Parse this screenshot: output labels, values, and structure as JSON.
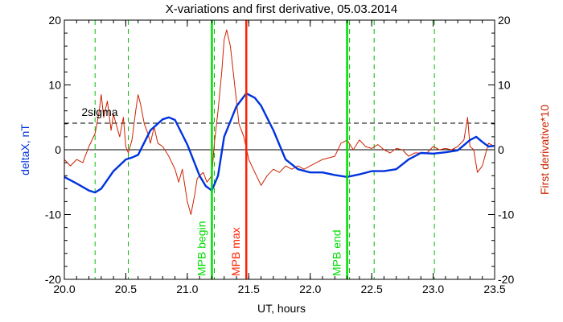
{
  "chart_data": {
    "type": "line",
    "title": "X-variations and first derivative, 05.03.2014",
    "xlabel": "UT, hours",
    "ylabel_left": "deltaX, nT",
    "ylabel_right": "First derivative*10",
    "xlim": [
      20.0,
      23.5
    ],
    "ylim": [
      -20,
      20
    ],
    "x_ticks": [
      "20.0",
      "20.5",
      "21.0",
      "21.5",
      "22.0",
      "22.5",
      "23.0",
      "23.5"
    ],
    "y_ticks": [
      "-20",
      "-10",
      "0",
      "10",
      "20"
    ],
    "threshold": {
      "label": "2sigma",
      "value": 4.1
    },
    "dashed_verticals": [
      20.25,
      20.52,
      21.22,
      22.32,
      22.52,
      23.01
    ],
    "events": [
      {
        "label": "MPB begin",
        "x": 21.2,
        "color": "#00dd00"
      },
      {
        "label": "MPB max",
        "x": 21.48,
        "color": "#ff2200"
      },
      {
        "label": "MPB end",
        "x": 22.3,
        "color": "#00dd00"
      }
    ],
    "colors": {
      "deltaX": "#0033dd",
      "derivative": "#cc2200",
      "left_axis_label": "#0033dd",
      "right_axis_label": "#cc2200",
      "dashed_lines": "#00bb00",
      "threshold_line": "#000000",
      "zero_line": "#000000"
    },
    "series": [
      {
        "name": "deltaX",
        "x": [
          20.0,
          20.1,
          20.2,
          20.25,
          20.3,
          20.4,
          20.5,
          20.55,
          20.6,
          20.7,
          20.8,
          20.85,
          20.9,
          21.0,
          21.1,
          21.15,
          21.2,
          21.25,
          21.3,
          21.4,
          21.48,
          21.55,
          21.6,
          21.7,
          21.8,
          21.9,
          22.0,
          22.1,
          22.2,
          22.3,
          22.4,
          22.5,
          22.6,
          22.7,
          22.8,
          22.9,
          23.0,
          23.1,
          23.2,
          23.3,
          23.35,
          23.4,
          23.45,
          23.5
        ],
        "y": [
          -4.2,
          -5.2,
          -6.3,
          -6.6,
          -6.0,
          -3.3,
          -1.5,
          -1.2,
          -0.8,
          3.0,
          4.7,
          5.0,
          4.6,
          0.8,
          -4.0,
          -5.6,
          -6.3,
          -4.0,
          2.0,
          6.7,
          8.7,
          8.0,
          6.8,
          3.0,
          -1.5,
          -3.0,
          -3.5,
          -3.5,
          -3.9,
          -4.2,
          -3.8,
          -3.3,
          -3.3,
          -3.0,
          -1.5,
          -0.5,
          -0.6,
          -0.4,
          -0.1,
          1.5,
          2.0,
          1.2,
          0.5,
          0.6
        ]
      },
      {
        "name": "First derivative*10",
        "x": [
          20.0,
          20.05,
          20.1,
          20.15,
          20.2,
          20.25,
          20.28,
          20.3,
          20.32,
          20.35,
          20.38,
          20.4,
          20.42,
          20.45,
          20.48,
          20.5,
          20.52,
          20.55,
          20.58,
          20.6,
          20.62,
          20.65,
          20.68,
          20.7,
          20.73,
          20.76,
          20.8,
          20.85,
          20.9,
          20.93,
          20.96,
          21.0,
          21.03,
          21.06,
          21.08,
          21.1,
          21.13,
          21.16,
          21.2,
          21.22,
          21.25,
          21.28,
          21.3,
          21.32,
          21.35,
          21.38,
          21.42,
          21.46,
          21.5,
          21.55,
          21.6,
          21.65,
          21.7,
          21.75,
          21.8,
          21.85,
          21.9,
          21.95,
          22.0,
          22.1,
          22.2,
          22.25,
          22.3,
          22.35,
          22.4,
          22.45,
          22.5,
          22.55,
          22.6,
          22.65,
          22.7,
          22.75,
          22.8,
          22.85,
          22.9,
          22.95,
          23.0,
          23.05,
          23.1,
          23.15,
          23.2,
          23.25,
          23.28,
          23.3,
          23.33,
          23.36,
          23.4,
          23.45,
          23.5
        ],
        "y": [
          -1.5,
          -2.5,
          -1.5,
          -2.0,
          0.5,
          2.5,
          5.5,
          8.5,
          5.0,
          7.5,
          3.0,
          5.5,
          4.0,
          2.0,
          5.0,
          0.5,
          -0.5,
          1.5,
          6.0,
          8.5,
          7.0,
          4.0,
          2.5,
          1.0,
          3.5,
          1.0,
          0.5,
          -1.0,
          -3.0,
          -5.0,
          -3.0,
          -8.0,
          -10.0,
          -7.0,
          -4.5,
          -4.0,
          -3.5,
          -5.0,
          -4.0,
          1.0,
          6.0,
          12.0,
          17.0,
          18.5,
          16.0,
          11.0,
          4.0,
          2.0,
          -1.5,
          -3.5,
          -5.5,
          -4.0,
          -3.0,
          -3.5,
          -2.5,
          -3.0,
          -2.5,
          -3.0,
          -2.5,
          -1.5,
          -1.0,
          1.0,
          1.5,
          0.0,
          1.5,
          0.5,
          0.2,
          0.8,
          0.0,
          -0.5,
          0.2,
          0.0,
          -1.0,
          -0.5,
          -0.5,
          -0.5,
          0.5,
          0.0,
          0.2,
          0.0,
          0.5,
          1.5,
          5.0,
          0.5,
          0.0,
          -3.5,
          -2.5,
          1.0,
          0.5
        ]
      }
    ]
  }
}
